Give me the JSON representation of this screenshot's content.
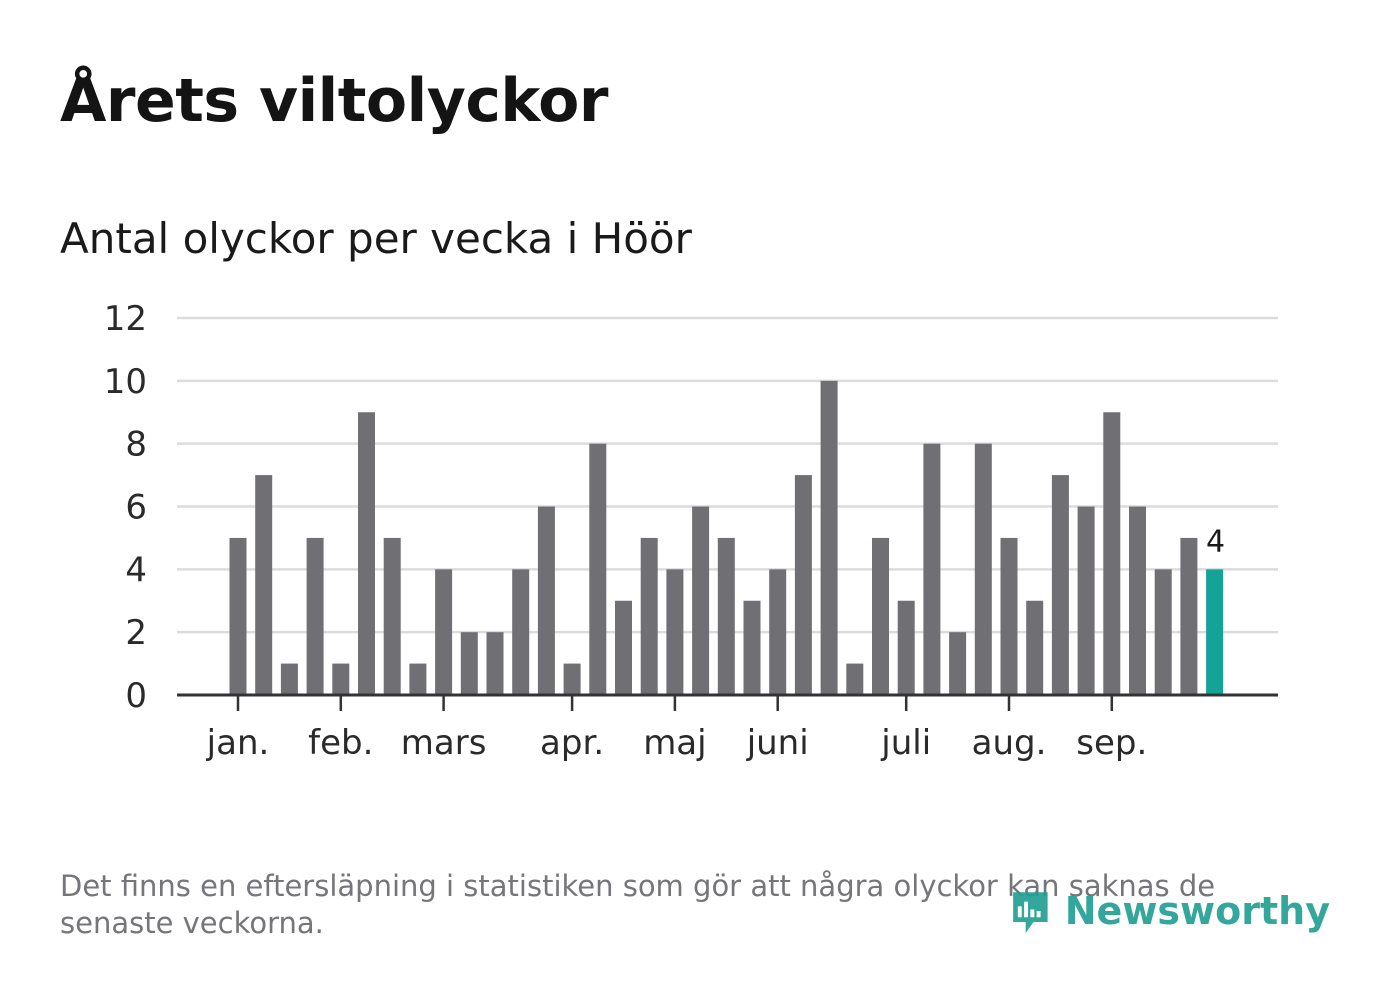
{
  "title": "Årets viltolyckor",
  "subtitle": "Antal olyckor per vecka i Höör",
  "footnote": "Det finns en eftersläpning i statistiken som gör att några olyckor kan saknas de senaste veckorna.",
  "brand": "Newsworthy",
  "colors": {
    "bar": "#706f74",
    "highlight": "#14a497",
    "grid": "#dcdcdc",
    "axis": "#333333",
    "text": "#2a2a2a"
  },
  "chart_data": {
    "type": "bar",
    "title": "Antal olyckor per vecka i Höör",
    "xlabel": "",
    "ylabel": "",
    "ylim": [
      0,
      12
    ],
    "yticks": [
      0,
      2,
      4,
      6,
      8,
      10,
      12
    ],
    "grid": true,
    "weeks": [
      1,
      2,
      3,
      4,
      5,
      6,
      7,
      8,
      9,
      10,
      11,
      12,
      13,
      14,
      15,
      16,
      17,
      18,
      19,
      20,
      21,
      22,
      23,
      24,
      25,
      26,
      27,
      28,
      29,
      30,
      31,
      32,
      33,
      34,
      35,
      36,
      37,
      38,
      39
    ],
    "values": [
      5,
      7,
      1,
      5,
      1,
      9,
      5,
      1,
      4,
      2,
      2,
      4,
      6,
      1,
      8,
      3,
      5,
      4,
      6,
      5,
      3,
      4,
      7,
      10,
      1,
      5,
      3,
      8,
      2,
      8,
      5,
      3,
      7,
      6,
      9,
      6,
      4,
      5,
      4
    ],
    "highlight_index": 38,
    "highlight_label": "4",
    "month_ticks": [
      {
        "label": "jan.",
        "week": 1
      },
      {
        "label": "feb.",
        "week": 5
      },
      {
        "label": "mars",
        "week": 9
      },
      {
        "label": "apr.",
        "week": 14
      },
      {
        "label": "maj",
        "week": 18
      },
      {
        "label": "juni",
        "week": 22
      },
      {
        "label": "juli",
        "week": 27
      },
      {
        "label": "aug.",
        "week": 31
      },
      {
        "label": "sep.",
        "week": 35
      }
    ]
  }
}
